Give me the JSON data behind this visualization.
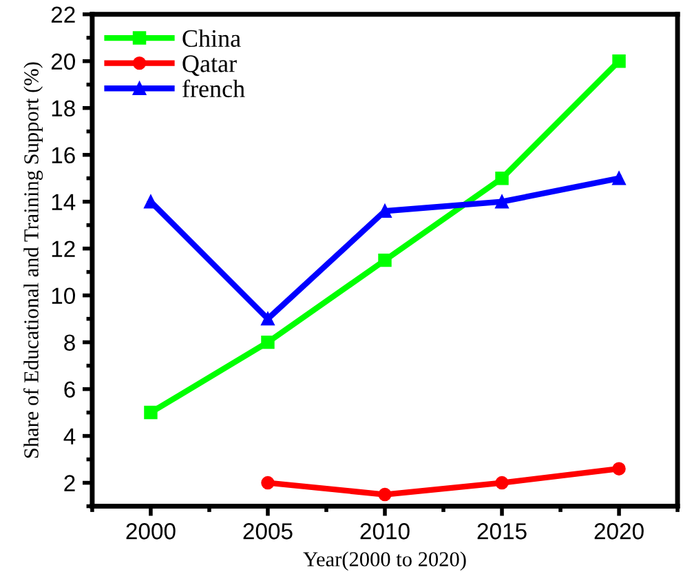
{
  "chart_data": {
    "type": "line",
    "xlabel": "Year(2000 to 2020)",
    "ylabel": "Share of Educational and Training Support (%)",
    "x": [
      2000,
      2005,
      2010,
      2015,
      2020
    ],
    "series": [
      {
        "name": "China",
        "color": "#00ff00",
        "marker": "square",
        "values": [
          5,
          8,
          11.5,
          15,
          20
        ]
      },
      {
        "name": "Qatar",
        "color": "#ff0000",
        "marker": "circle",
        "values": [
          null,
          2,
          1.5,
          2,
          2.6
        ]
      },
      {
        "name": "french",
        "color": "#0000ff",
        "marker": "triangle",
        "values": [
          14,
          9,
          13.6,
          14,
          15
        ]
      }
    ],
    "xlim": [
      1997.5,
      2022.5
    ],
    "xticks": [
      2000,
      2005,
      2010,
      2015,
      2020
    ],
    "ylim": [
      1,
      22
    ],
    "yticks": [
      2,
      4,
      6,
      8,
      10,
      12,
      14,
      16,
      18,
      20,
      22
    ],
    "grid": false,
    "legend": "top left",
    "line_style": "solid"
  }
}
